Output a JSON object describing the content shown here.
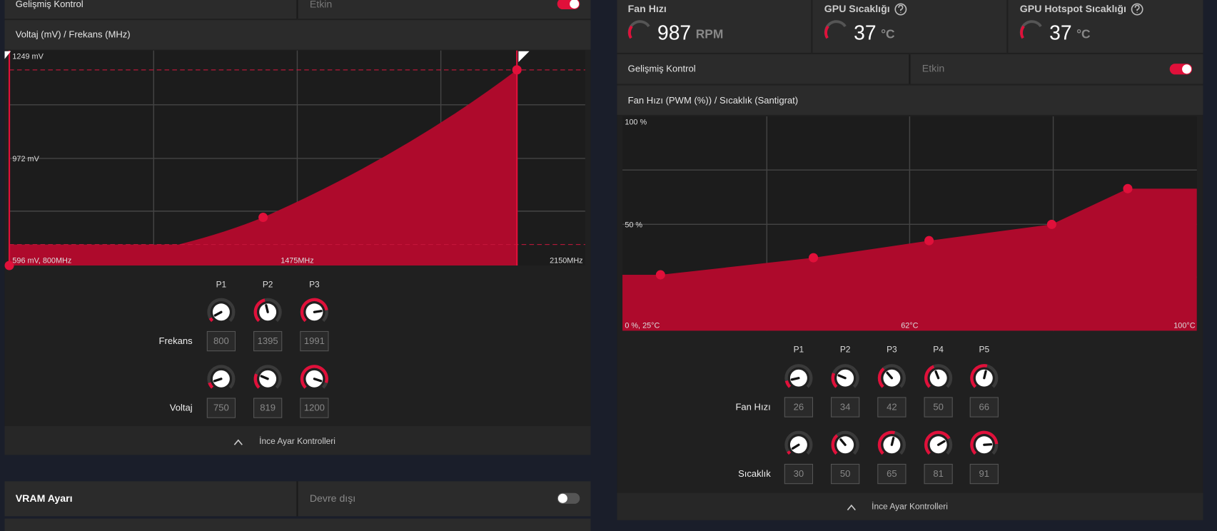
{
  "left": {
    "advanced": {
      "label": "Gelişmiş Kontrol",
      "state": "Etkin"
    },
    "chart": {
      "title": "Voltaj (mV) / Frekans (MHz)",
      "labels": [
        "1249 mV",
        "972 mV",
        "596 mV, 800MHz",
        "1475MHz",
        "2150MHz"
      ]
    },
    "points": [
      "P1",
      "P2",
      "P3"
    ],
    "rows": [
      {
        "label": "Frekans",
        "values": [
          800,
          1395,
          1991
        ]
      },
      {
        "label": "Voltaj",
        "values": [
          750,
          819,
          1200
        ]
      }
    ],
    "footer": "İnce Ayar Kontrolleri",
    "vram": {
      "label": "VRAM Ayarı",
      "state": "Devre dışı"
    }
  },
  "right": {
    "stats": [
      {
        "label": "Fan Hızı",
        "value": 987,
        "unit": "RPM"
      },
      {
        "label": "GPU Sıcaklığı",
        "value": 37,
        "unit": "°C"
      },
      {
        "label": "GPU Hotspot Sıcaklığı",
        "value": 37,
        "unit": "°C"
      }
    ],
    "advanced": {
      "label": "Gelişmiş Kontrol",
      "state": "Etkin"
    },
    "chart": {
      "title": "Fan Hızı (PWM (%)) / Sıcaklık (Santigrat)",
      "labels": [
        "100 %",
        "50 %",
        "0 %, 25°C",
        "62°C",
        "100°C"
      ]
    },
    "points": [
      "P1",
      "P2",
      "P3",
      "P4",
      "P5"
    ],
    "rows": [
      {
        "label": "Fan Hızı",
        "values": [
          26,
          34,
          42,
          50,
          66
        ]
      },
      {
        "label": "Sıcaklık",
        "values": [
          30,
          50,
          65,
          81,
          91
        ]
      }
    ],
    "footer": "İnce Ayar Kontrolleri"
  }
}
